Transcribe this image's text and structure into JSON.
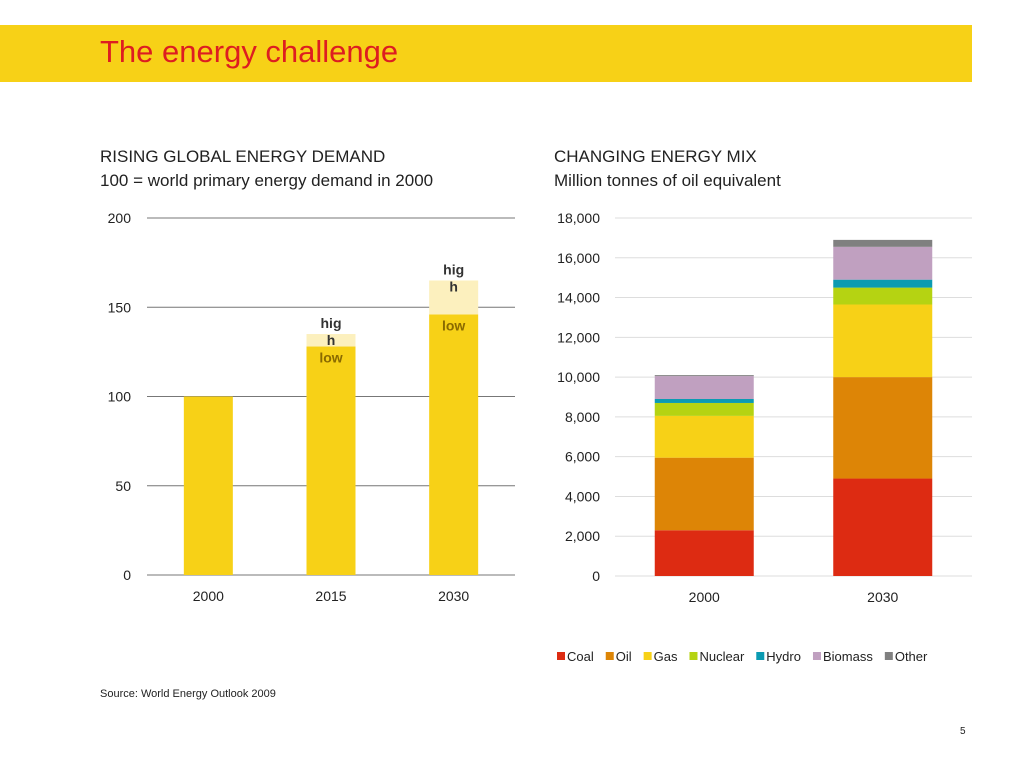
{
  "slide": {
    "title": "The energy challenge",
    "source": "Source: World Energy Outlook 2009",
    "page_number": "5",
    "colors": {
      "banner": "#F7D117",
      "title": "#DD1D21"
    }
  },
  "chart_data": [
    {
      "type": "bar",
      "title": "RISING GLOBAL ENERGY DEMAND",
      "subtitle": "100 = world primary energy demand in 2000",
      "categories": [
        "2000",
        "2015",
        "2030"
      ],
      "values": [
        100,
        128,
        146
      ],
      "high_values": [
        null,
        135,
        165
      ],
      "range_labels": {
        "high": "hig h",
        "low": "low"
      },
      "ylim": [
        0,
        200
      ],
      "yticks": [
        0,
        50,
        100,
        150,
        200
      ],
      "grid": true,
      "colors": {
        "bar": "#F7D117",
        "high": "#FCF0BE"
      }
    },
    {
      "type": "bar",
      "stacked": true,
      "title": "CHANGING ENERGY MIX",
      "subtitle": "Million tonnes of oil equivalent",
      "categories": [
        "2000",
        "2030"
      ],
      "series": [
        {
          "name": "Coal",
          "values": [
            2300,
            4900
          ],
          "color": "#DD2B12"
        },
        {
          "name": "Oil",
          "values": [
            3650,
            5100
          ],
          "color": "#DD8506"
        },
        {
          "name": "Gas",
          "values": [
            2100,
            3650
          ],
          "color": "#F7D117"
        },
        {
          "name": "Nuclear",
          "values": [
            650,
            850
          ],
          "color": "#B5D312"
        },
        {
          "name": "Hydro",
          "values": [
            200,
            400
          ],
          "color": "#0B9BB2"
        },
        {
          "name": "Biomass",
          "values": [
            1150,
            1650
          ],
          "color": "#C0A0C0"
        },
        {
          "name": "Other",
          "values": [
            50,
            350
          ],
          "color": "#808080"
        }
      ],
      "ylim": [
        0,
        18000
      ],
      "yticks": [
        "0",
        "2,000",
        "4,000",
        "6,000",
        "8,000",
        "10,000",
        "12,000",
        "14,000",
        "16,000",
        "18,000"
      ],
      "grid": true,
      "legend": "bottom"
    }
  ]
}
